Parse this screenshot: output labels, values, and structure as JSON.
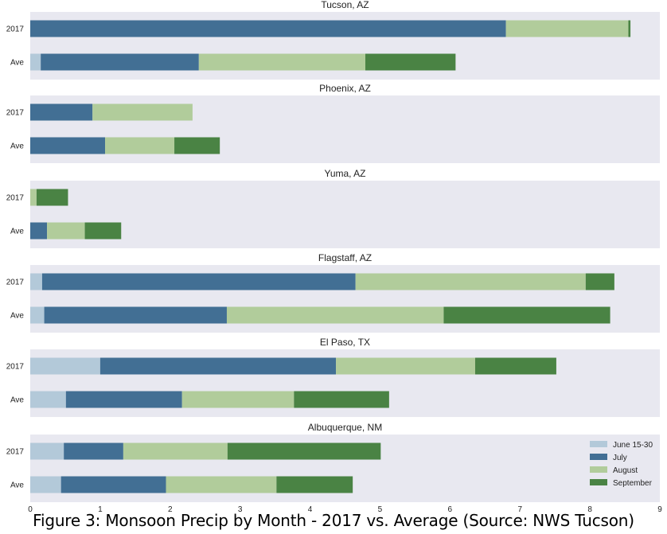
{
  "caption": "Figure 3: Monsoon Precip by Month - 2017 vs. Average (Source: NWS Tucson)",
  "chart_data": {
    "type": "bar",
    "orientation": "horizontal",
    "stacked": true,
    "xlim": [
      0,
      9
    ],
    "xticks": [
      0,
      1,
      2,
      3,
      4,
      5,
      6,
      7,
      8,
      9
    ],
    "rows": [
      "2017",
      "Ave"
    ],
    "series_names": [
      "June 15-30",
      "July",
      "August",
      "September"
    ],
    "colors": [
      "#b3c9d9",
      "#426f94",
      "#b1cc9b",
      "#4a8344"
    ],
    "panel_background": "#e8e8f0",
    "legend_position": "bottom-right (last panel)",
    "grid": false,
    "panels": [
      {
        "title": "Tucson, AZ",
        "values": {
          "2017": [
            0.0,
            6.8,
            1.75,
            0.03
          ],
          "Ave": [
            0.15,
            2.26,
            2.38,
            1.29
          ]
        }
      },
      {
        "title": "Phoenix, AZ",
        "values": {
          "2017": [
            0.0,
            0.89,
            1.43,
            0.0
          ],
          "Ave": [
            0.0,
            1.07,
            0.99,
            0.65
          ]
        }
      },
      {
        "title": "Yuma, AZ",
        "values": {
          "2017": [
            0.0,
            0.0,
            0.09,
            0.45
          ],
          "Ave": [
            0.0,
            0.24,
            0.54,
            0.52
          ]
        }
      },
      {
        "title": "Flagstaff, AZ",
        "values": {
          "2017": [
            0.17,
            4.48,
            3.29,
            0.41
          ],
          "Ave": [
            0.2,
            2.61,
            3.1,
            2.38
          ]
        }
      },
      {
        "title": "El Paso, TX",
        "values": {
          "2017": [
            1.0,
            3.37,
            1.99,
            1.16
          ],
          "Ave": [
            0.51,
            1.66,
            1.6,
            1.36
          ]
        }
      },
      {
        "title": "Albuquerque, NM",
        "values": {
          "2017": [
            0.48,
            0.85,
            1.49,
            2.19
          ],
          "Ave": [
            0.44,
            1.5,
            1.58,
            1.09
          ]
        }
      }
    ]
  }
}
